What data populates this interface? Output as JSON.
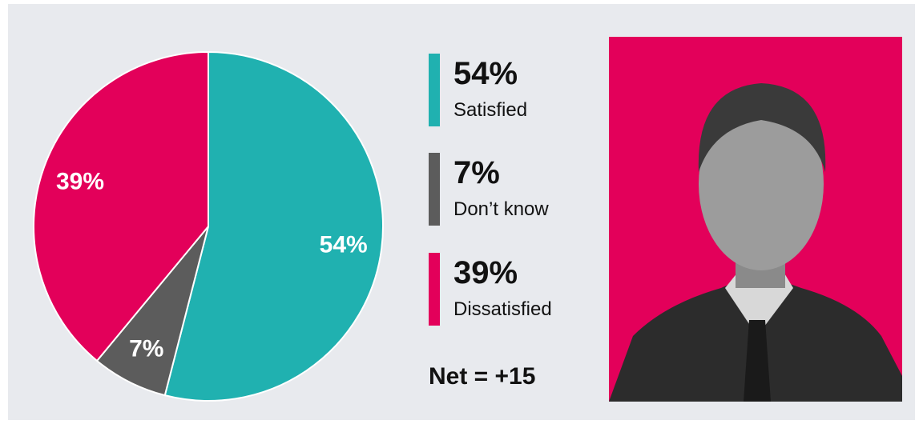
{
  "chart_data": {
    "type": "pie",
    "categories": [
      "Satisfied",
      "Don’t know",
      "Dissatisfied"
    ],
    "values": [
      54,
      7,
      39
    ],
    "value_labels": [
      "54%",
      "7%",
      "39%"
    ],
    "colors": [
      "#20b1b0",
      "#5c5c5c",
      "#e3005a"
    ],
    "net_label": "Net = +15"
  }
}
